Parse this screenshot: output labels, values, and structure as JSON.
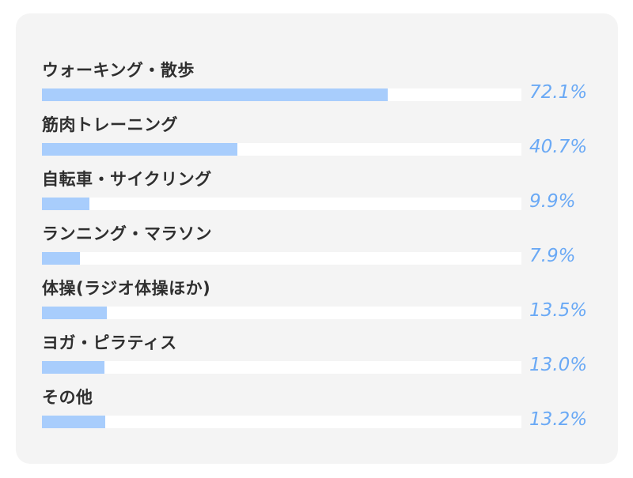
{
  "chart_data": {
    "type": "bar",
    "orientation": "horizontal",
    "categories": [
      "ウォーキング・散歩",
      "筋肉トレーニング",
      "自転車・サイクリング",
      "ランニング・マラソン",
      "体操(ラジオ体操ほか)",
      "ヨガ・ピラティス",
      "その他"
    ],
    "values": [
      72.1,
      40.7,
      9.9,
      7.9,
      13.5,
      13.0,
      13.2
    ],
    "value_labels": [
      "72.1%",
      "40.7%",
      "9.9%",
      "7.9%",
      "13.5%",
      "13.0%",
      "13.2%"
    ],
    "xlim": [
      0,
      100
    ],
    "grid": false,
    "colors": {
      "bar": "#a8cdfc",
      "track": "#ffffff",
      "value_text": "#6aa9f5",
      "label_text": "#2f2f2f",
      "panel": "#f4f4f4"
    }
  }
}
